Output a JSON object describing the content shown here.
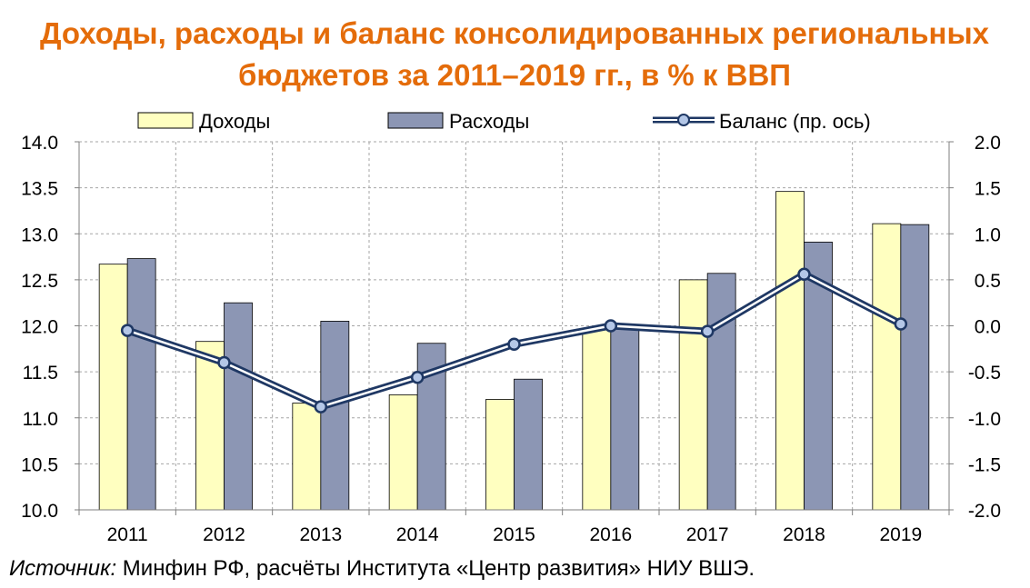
{
  "chart_data": {
    "type": "bar",
    "title_line1": "Доходы, расходы и баланс консолидированных региональных",
    "title_line2": "бюджетов за 2011–2019 гг., в % к ВВП",
    "categories": [
      "2011",
      "2012",
      "2013",
      "2014",
      "2015",
      "2016",
      "2017",
      "2018",
      "2019"
    ],
    "series": [
      {
        "name": "Доходы",
        "kind": "bar",
        "axis": "left",
        "color": "#FFFFC0",
        "values": [
          12.67,
          11.83,
          11.16,
          11.25,
          11.2,
          11.97,
          12.5,
          13.46,
          13.11
        ]
      },
      {
        "name": "Расходы",
        "kind": "bar",
        "axis": "left",
        "color": "#8C96B4",
        "values": [
          12.73,
          12.25,
          12.05,
          11.81,
          11.42,
          11.99,
          12.57,
          12.91,
          13.1
        ]
      },
      {
        "name": "Баланс (пр. ось)",
        "kind": "line",
        "axis": "right",
        "color": "#1F3864",
        "values": [
          -0.05,
          -0.4,
          -0.88,
          -0.56,
          -0.2,
          0.0,
          -0.06,
          0.56,
          0.02
        ]
      }
    ],
    "ylim": [
      10.0,
      14.0
    ],
    "y2lim": [
      -2.0,
      2.0
    ],
    "yticks": [
      "10.0",
      "10.5",
      "11.0",
      "11.5",
      "12.0",
      "12.5",
      "13.0",
      "13.5",
      "14.0"
    ],
    "y2ticks": [
      "-2.0",
      "-1.5",
      "-1.0",
      "-0.5",
      "0.0",
      "0.5",
      "1.0",
      "1.5",
      "2.0"
    ],
    "grid": true,
    "legend_position": "top"
  },
  "source": {
    "label": "Источник:",
    "text": " Минфин РФ, расчёты Института «Центр развития» НИУ ВШЭ."
  }
}
